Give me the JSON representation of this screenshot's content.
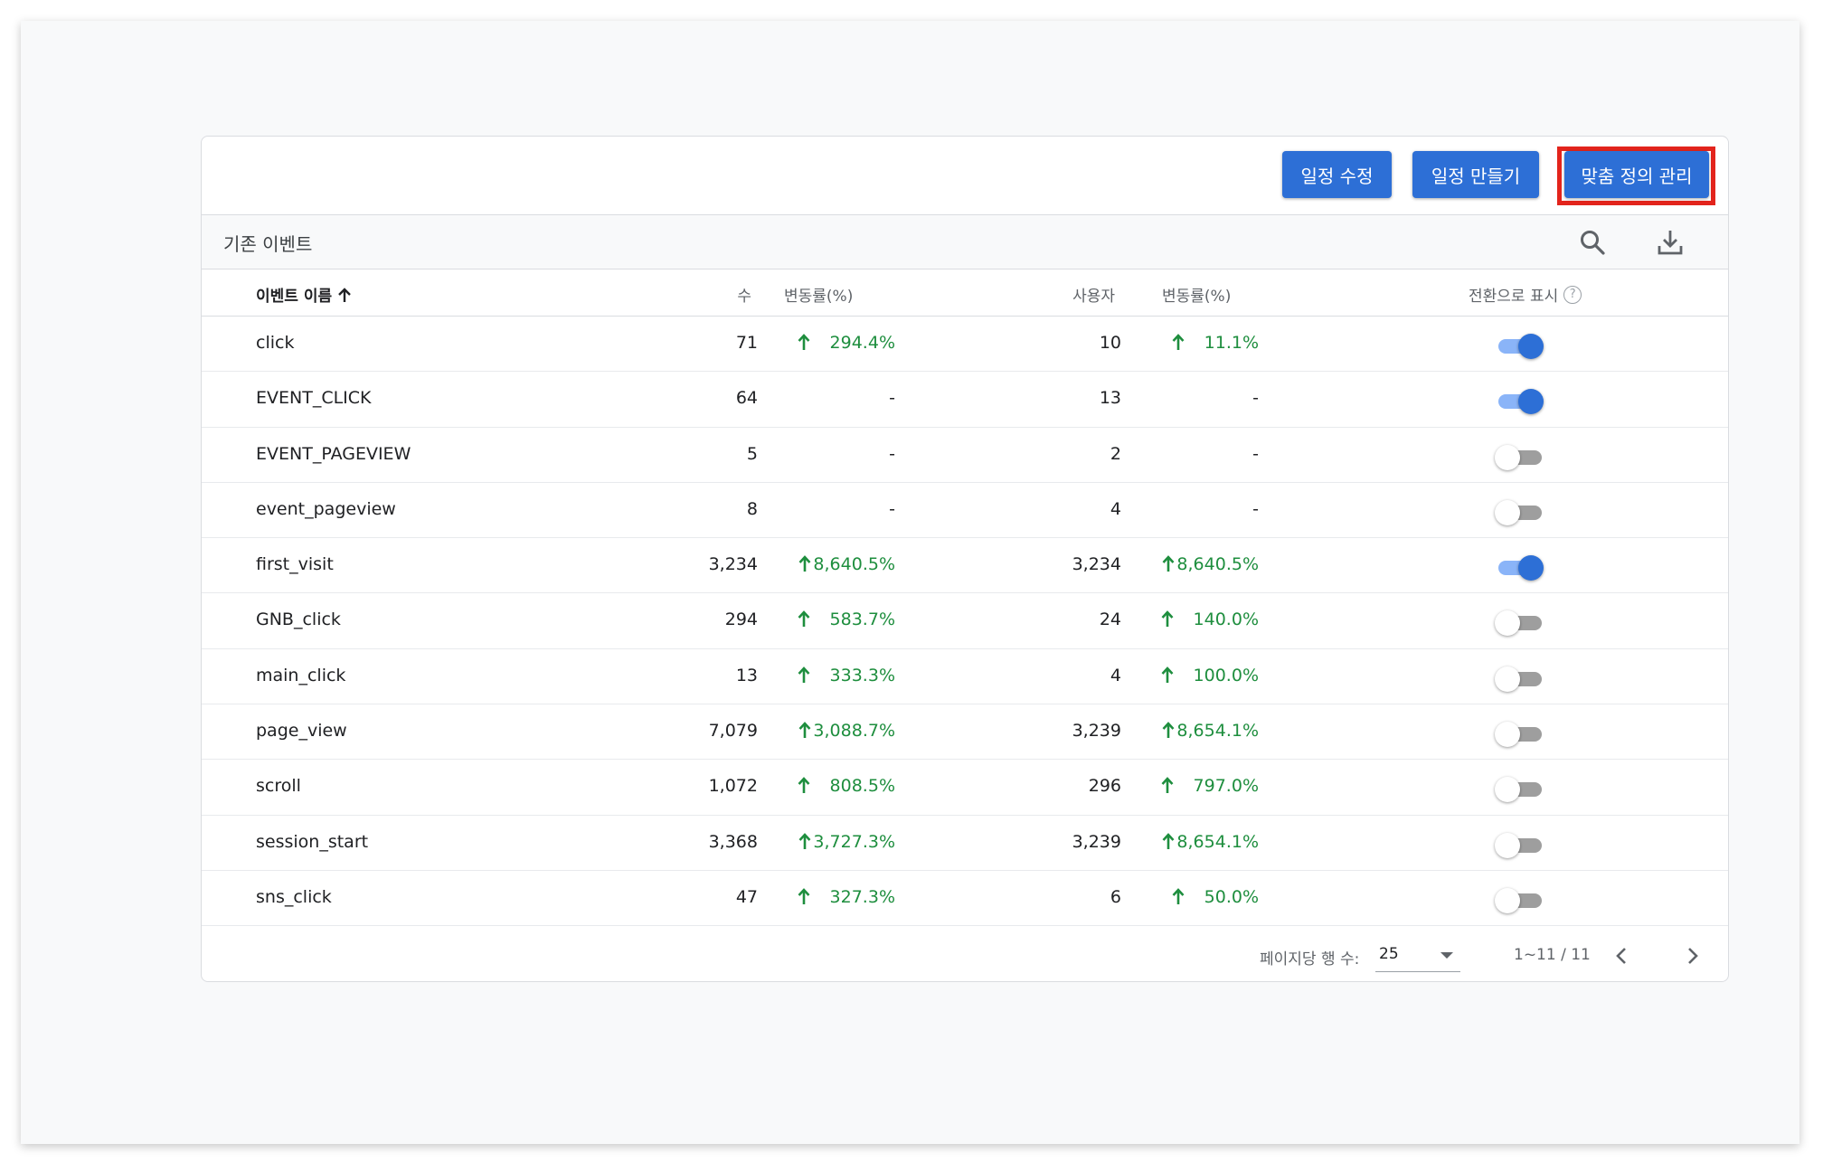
{
  "toolbar": {
    "edit_schedule": "일정 수정",
    "create_schedule": "일정 만들기",
    "manage_custom": "맞춤 정의 관리"
  },
  "section": {
    "title": "기존 이벤트"
  },
  "icons": {
    "search": "search-icon",
    "download": "download-icon",
    "sort": "arrow-up-icon",
    "help": "help-icon"
  },
  "columns": {
    "name": "이벤트 이름",
    "count": "수",
    "count_change": "변동률(%)",
    "users": "사용자",
    "users_change": "변동률(%)",
    "conversion": "전환으로 표시",
    "help_glyph": "?"
  },
  "rows": [
    {
      "name": "click",
      "count": "71",
      "count_change": "294.4%",
      "users": "10",
      "users_change": "11.1%",
      "conversion": true
    },
    {
      "name": "EVENT_CLICK",
      "count": "64",
      "count_change": "-",
      "users": "13",
      "users_change": "-",
      "conversion": true
    },
    {
      "name": "EVENT_PAGEVIEW",
      "count": "5",
      "count_change": "-",
      "users": "2",
      "users_change": "-",
      "conversion": false
    },
    {
      "name": "event_pageview",
      "count": "8",
      "count_change": "-",
      "users": "4",
      "users_change": "-",
      "conversion": false
    },
    {
      "name": "first_visit",
      "count": "3,234",
      "count_change": "8,640.5%",
      "users": "3,234",
      "users_change": "8,640.5%",
      "conversion": true
    },
    {
      "name": "GNB_click",
      "count": "294",
      "count_change": "583.7%",
      "users": "24",
      "users_change": "140.0%",
      "conversion": false
    },
    {
      "name": "main_click",
      "count": "13",
      "count_change": "333.3%",
      "users": "4",
      "users_change": "100.0%",
      "conversion": false
    },
    {
      "name": "page_view",
      "count": "7,079",
      "count_change": "3,088.7%",
      "users": "3,239",
      "users_change": "8,654.1%",
      "conversion": false
    },
    {
      "name": "scroll",
      "count": "1,072",
      "count_change": "808.5%",
      "users": "296",
      "users_change": "797.0%",
      "conversion": false
    },
    {
      "name": "session_start",
      "count": "3,368",
      "count_change": "3,727.3%",
      "users": "3,239",
      "users_change": "8,654.1%",
      "conversion": false
    },
    {
      "name": "sns_click",
      "count": "47",
      "count_change": "327.3%",
      "users": "6",
      "users_change": "50.0%",
      "conversion": false
    }
  ],
  "footer": {
    "rows_per_page_label": "페이지당 행 수:",
    "rows_per_page": "25",
    "range": "1~11 / 11"
  },
  "colors": {
    "accent": "#2d6fd6",
    "positive": "#1e8e3e",
    "highlight": "#e3241c"
  }
}
